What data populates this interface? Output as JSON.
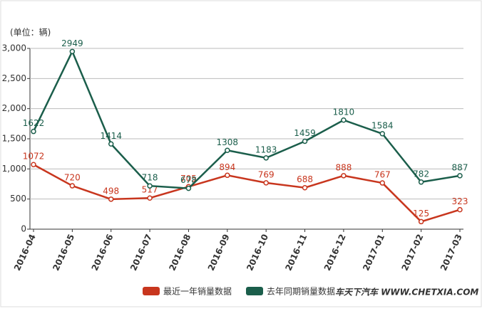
{
  "chart_data": {
    "type": "line",
    "unit_label": "(单位：辆)",
    "categories": [
      "2016-04",
      "2016-05",
      "2016-06",
      "2016-07",
      "2016-08",
      "2016-09",
      "2016-10",
      "2016-11",
      "2016-12",
      "2017-01",
      "2017-02",
      "2017-03"
    ],
    "series": [
      {
        "name": "最近一年销量数据",
        "color": "#c8361e",
        "values": [
          1072,
          720,
          498,
          517,
          705,
          894,
          769,
          688,
          888,
          767,
          125,
          323
        ]
      },
      {
        "name": "去年同期销量数据",
        "color": "#1b5e4b",
        "values": [
          1622,
          2949,
          1414,
          718,
          678,
          1308,
          1183,
          1459,
          1810,
          1584,
          782,
          887
        ]
      }
    ],
    "ylim": [
      0,
      3000
    ],
    "yticks": [
      0,
      500,
      {
        "value": 1000,
        "label": "1,000"
      },
      {
        "value": 1500,
        "label": "1,500"
      },
      {
        "value": 2000,
        "label": "2,000"
      },
      {
        "value": 2500,
        "label": "2,500"
      },
      {
        "value": 3000,
        "label": "3,000"
      }
    ],
    "grid": true,
    "legend": "bottom",
    "watermark": "车天下汽车 WWW.CHETXIA.COM"
  }
}
